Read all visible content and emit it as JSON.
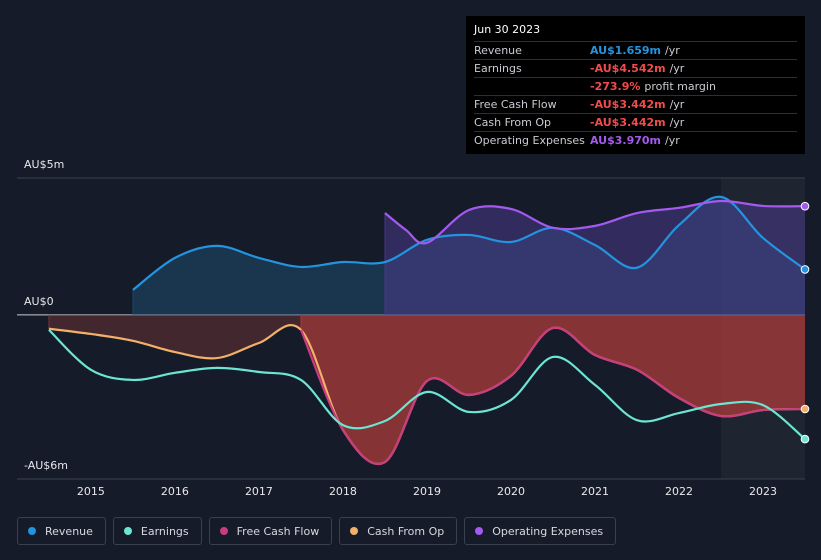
{
  "chart_data": {
    "type": "line",
    "xlim": [
      2014.12,
      2023.5
    ],
    "xticks": [
      2015,
      2016,
      2017,
      2018,
      2019,
      2020,
      2021,
      2022,
      2023
    ],
    "ylim": [
      -6,
      5
    ],
    "yticks": [
      {
        "value": 5,
        "label": "AU$5m"
      },
      {
        "value": 0,
        "label": "AU$0"
      },
      {
        "value": -6,
        "label": "-AU$6m"
      }
    ],
    "grid": true,
    "series": [
      {
        "name": "Revenue",
        "color": "#2394df",
        "x": [
          2015.5,
          2016,
          2016.5,
          2017,
          2017.5,
          2018,
          2018.5,
          2019,
          2019.5,
          2020,
          2020.5,
          2021,
          2021.5,
          2022,
          2022.5,
          2023,
          2023.5
        ],
        "values": [
          0.91,
          2.08,
          2.52,
          2.08,
          1.75,
          1.93,
          1.93,
          2.74,
          2.92,
          2.66,
          3.18,
          2.55,
          1.72,
          3.28,
          4.31,
          2.81,
          1.659
        ]
      },
      {
        "name": "Earnings",
        "color": "#6ce5d2",
        "x": [
          2014.5,
          2015,
          2015.5,
          2016,
          2016.5,
          2017,
          2017.5,
          2018,
          2018.5,
          2019,
          2019.5,
          2020,
          2020.5,
          2021,
          2021.5,
          2022,
          2022.5,
          2023,
          2023.5
        ],
        "values": [
          -0.55,
          -2.01,
          -2.38,
          -2.12,
          -1.94,
          -2.09,
          -2.38,
          -4.03,
          -3.88,
          -2.82,
          -3.55,
          -3.11,
          -1.54,
          -2.56,
          -3.85,
          -3.59,
          -3.26,
          -3.3,
          -4.542
        ]
      },
      {
        "name": "Free Cash Flow",
        "color": "#c93c7f",
        "x": [
          2017.5,
          2018,
          2018.5,
          2019,
          2019.5,
          2020,
          2020.5,
          2021,
          2021.5,
          2022,
          2022.5,
          2023,
          2023.5
        ],
        "values": [
          -0.55,
          -4.21,
          -5.38,
          -2.42,
          -2.93,
          -2.23,
          -0.48,
          -1.47,
          -2.01,
          -3.04,
          -3.7,
          -3.48,
          -3.442
        ]
      },
      {
        "name": "Cash From Op",
        "color": "#f2b06b",
        "x": [
          2014.5,
          2015,
          2015.5,
          2016,
          2016.5,
          2017,
          2017.5,
          2018,
          2018.5,
          2019,
          2019.5,
          2020,
          2020.5,
          2021,
          2021.5,
          2022,
          2022.5,
          2023,
          2023.5
        ],
        "values": [
          -0.51,
          -0.7,
          -0.95,
          -1.36,
          -1.58,
          -1.03,
          -0.55,
          -4.21,
          -5.38,
          -2.42,
          -2.93,
          -2.23,
          -0.48,
          -1.47,
          -2.01,
          -3.04,
          -3.7,
          -3.48,
          -3.442
        ]
      },
      {
        "name": "Operating Expenses",
        "color": "#a459ef",
        "x": [
          2018.5,
          2018.75,
          2019,
          2019.5,
          2020,
          2020.5,
          2021,
          2021.5,
          2022,
          2022.5,
          2023,
          2023.5
        ],
        "values": [
          3.72,
          3.1,
          2.63,
          3.83,
          3.87,
          3.18,
          3.25,
          3.72,
          3.91,
          4.16,
          3.98,
          3.97
        ]
      }
    ],
    "tooltip": {
      "date": "Jun 30 2023",
      "rows": [
        {
          "label": "Revenue",
          "value": "AU$1.659m",
          "unit": "/yr",
          "color": "#2394df"
        },
        {
          "label": "Earnings",
          "value": "-AU$4.542m",
          "unit": "/yr",
          "color": "#f24b4b"
        },
        {
          "value": "-273.9%",
          "unit": "profit margin",
          "color": "#f24b4b"
        },
        {
          "label": "Free Cash Flow",
          "value": "-AU$3.442m",
          "unit": "/yr",
          "color": "#f24b4b"
        },
        {
          "label": "Cash From Op",
          "value": "-AU$3.442m",
          "unit": "/yr",
          "color": "#f24b4b"
        },
        {
          "label": "Operating Expenses",
          "value": "AU$3.970m",
          "unit": "/yr",
          "color": "#a459ef"
        }
      ]
    }
  }
}
